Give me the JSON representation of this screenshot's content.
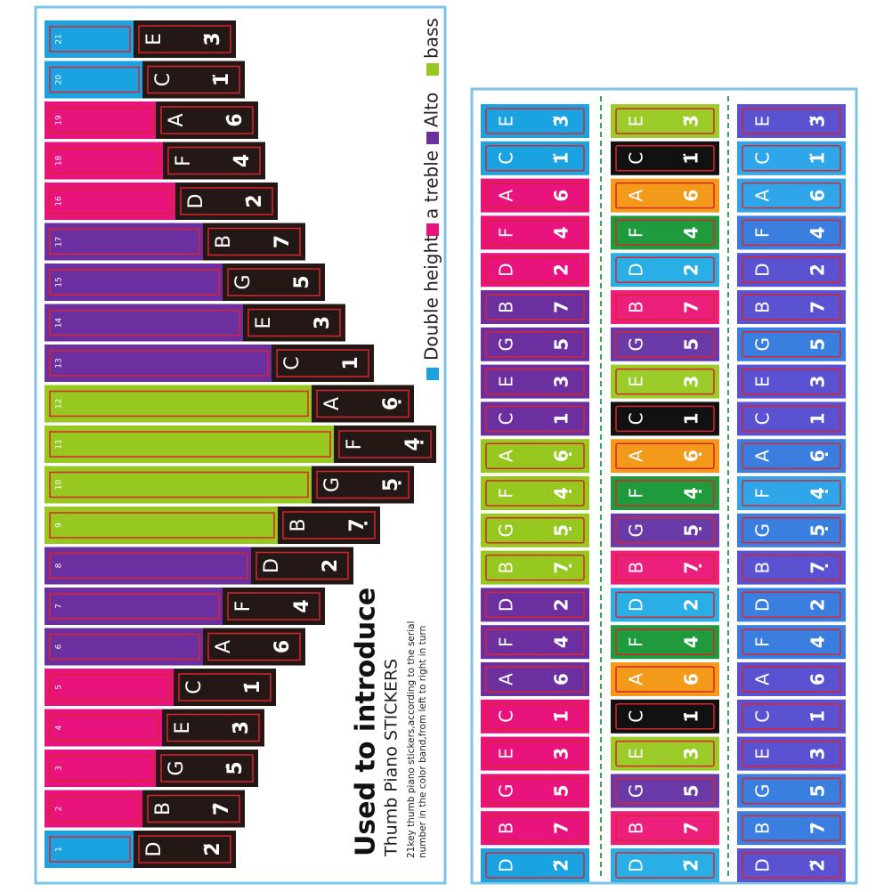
{
  "left": {
    "keys": [
      {
        "index": "21",
        "note": "E",
        "number": "3̈",
        "color": "#1aa3e0"
      },
      {
        "index": "20",
        "note": "C",
        "number": "1̈",
        "color": "#1aa3e0"
      },
      {
        "index": "19",
        "note": "A",
        "number": "6̇",
        "color": "#e8137c"
      },
      {
        "index": "18",
        "note": "F",
        "number": "4̇",
        "color": "#e8137c"
      },
      {
        "index": "16",
        "note": "D",
        "number": "2̇",
        "color": "#e8137c"
      },
      {
        "index": "17",
        "note": "B",
        "number": "7",
        "color": "#6b2fa0"
      },
      {
        "index": "15",
        "note": "G",
        "number": "5",
        "color": "#6b2fa0"
      },
      {
        "index": "14",
        "note": "E",
        "number": "3",
        "color": "#6b2fa0"
      },
      {
        "index": "13",
        "note": "C",
        "number": "1",
        "color": "#6b2fa0"
      },
      {
        "index": "12",
        "note": "A",
        "number": "6̣",
        "color": "#97c820"
      },
      {
        "index": "11",
        "note": "F",
        "number": "4̣",
        "color": "#97c820"
      },
      {
        "index": "10",
        "note": "G",
        "number": "5̣",
        "color": "#97c820"
      },
      {
        "index": "9",
        "note": "B",
        "number": "7̣",
        "color": "#97c820"
      },
      {
        "index": "8",
        "note": "D",
        "number": "2",
        "color": "#6b2fa0"
      },
      {
        "index": "7",
        "note": "F",
        "number": "4",
        "color": "#6b2fa0"
      },
      {
        "index": "6",
        "note": "A",
        "number": "6",
        "color": "#6b2fa0"
      },
      {
        "index": "5",
        "note": "C",
        "number": "1̇",
        "color": "#e8137c"
      },
      {
        "index": "4",
        "note": "E",
        "number": "3̇",
        "color": "#e8137c"
      },
      {
        "index": "3",
        "note": "G",
        "number": "5̇",
        "color": "#e8137c"
      },
      {
        "index": "2",
        "note": "B",
        "number": "7̇",
        "color": "#e8137c"
      },
      {
        "index": "1",
        "note": "D",
        "number": "2̈",
        "color": "#1aa3e0"
      }
    ],
    "legend": [
      {
        "label": "Double height",
        "color": "#1aa3e0"
      },
      {
        "label": "a treble",
        "color": "#e8137c"
      },
      {
        "label": "Alto",
        "color": "#6b2fa0"
      },
      {
        "label": "bass",
        "color": "#97c820"
      }
    ],
    "intro": {
      "title": "Used to introduce",
      "subtitle": "Thumb Piano STICKERS",
      "lines": [
        "21key thumb piano stickers,according to the serial",
        "number in the color band,from left to right in turn"
      ]
    }
  },
  "strips": [
    {
      "stickers": [
        {
          "note": "E",
          "number": "3̈",
          "color": "#1aa3e0"
        },
        {
          "note": "C",
          "number": "1̈",
          "color": "#1aa3e0"
        },
        {
          "note": "A",
          "number": "6̇",
          "color": "#e8137c"
        },
        {
          "note": "F",
          "number": "4̇",
          "color": "#e8137c"
        },
        {
          "note": "D",
          "number": "2̇",
          "color": "#e8137c"
        },
        {
          "note": "B",
          "number": "7",
          "color": "#6b2fa0"
        },
        {
          "note": "G",
          "number": "5",
          "color": "#6b2fa0"
        },
        {
          "note": "E",
          "number": "3",
          "color": "#6b2fa0"
        },
        {
          "note": "C",
          "number": "1",
          "color": "#6b2fa0"
        },
        {
          "note": "A",
          "number": "6̣",
          "color": "#97c820"
        },
        {
          "note": "F",
          "number": "4̣",
          "color": "#97c820"
        },
        {
          "note": "G",
          "number": "5̣",
          "color": "#97c820"
        },
        {
          "note": "B",
          "number": "7̣",
          "color": "#97c820"
        },
        {
          "note": "D",
          "number": "2",
          "color": "#6b2fa0"
        },
        {
          "note": "F",
          "number": "4",
          "color": "#6b2fa0"
        },
        {
          "note": "A",
          "number": "6",
          "color": "#6b2fa0"
        },
        {
          "note": "C",
          "number": "1̇",
          "color": "#e8137c"
        },
        {
          "note": "E",
          "number": "3̇",
          "color": "#e8137c"
        },
        {
          "note": "G",
          "number": "5̇",
          "color": "#e8137c"
        },
        {
          "note": "B",
          "number": "7̇",
          "color": "#e8137c"
        },
        {
          "note": "D",
          "number": "2̈",
          "color": "#1aa3e0"
        }
      ]
    },
    {
      "stickers": [
        {
          "note": "E",
          "number": "3̈",
          "color": "#9ccc2a"
        },
        {
          "note": "C",
          "number": "1̈",
          "color": "#111111"
        },
        {
          "note": "A",
          "number": "6̇",
          "color": "#f39a1a"
        },
        {
          "note": "F",
          "number": "4̇",
          "color": "#1f9a3c"
        },
        {
          "note": "D",
          "number": "2̇",
          "color": "#29aee6"
        },
        {
          "note": "B",
          "number": "7",
          "color": "#ec1f7c"
        },
        {
          "note": "G",
          "number": "5",
          "color": "#6a3aa8"
        },
        {
          "note": "E",
          "number": "3",
          "color": "#9ccc2a"
        },
        {
          "note": "C",
          "number": "1",
          "color": "#111111"
        },
        {
          "note": "A",
          "number": "6̣",
          "color": "#f39a1a"
        },
        {
          "note": "F",
          "number": "4̣",
          "color": "#1f9a3c"
        },
        {
          "note": "G",
          "number": "5̣",
          "color": "#6a3aa8"
        },
        {
          "note": "B",
          "number": "7̣",
          "color": "#ec1f7c"
        },
        {
          "note": "D",
          "number": "2",
          "color": "#29aee6"
        },
        {
          "note": "F",
          "number": "4",
          "color": "#1f9a3c"
        },
        {
          "note": "A",
          "number": "6",
          "color": "#f39a1a"
        },
        {
          "note": "C",
          "number": "1̇",
          "color": "#111111"
        },
        {
          "note": "E",
          "number": "3̇",
          "color": "#9ccc2a"
        },
        {
          "note": "G",
          "number": "5̇",
          "color": "#6a3aa8"
        },
        {
          "note": "B",
          "number": "7̇",
          "color": "#ec1f7c"
        },
        {
          "note": "D",
          "number": "2̈",
          "color": "#29aee6"
        }
      ]
    },
    {
      "stickers": [
        {
          "note": "E",
          "number": "3̈",
          "color": "#5a52d0"
        },
        {
          "note": "C",
          "number": "1̈",
          "color": "#2fa6ea"
        },
        {
          "note": "A",
          "number": "6̇",
          "color": "#2fa6ea"
        },
        {
          "note": "F",
          "number": "4̇",
          "color": "#3a7ee0"
        },
        {
          "note": "D",
          "number": "2̇",
          "color": "#5a52d0"
        },
        {
          "note": "B",
          "number": "7",
          "color": "#5a52d0"
        },
        {
          "note": "G",
          "number": "5",
          "color": "#3a7ee0"
        },
        {
          "note": "E",
          "number": "3",
          "color": "#5a52d0"
        },
        {
          "note": "C",
          "number": "1",
          "color": "#5a52d0"
        },
        {
          "note": "A",
          "number": "6̣",
          "color": "#3a7ee0"
        },
        {
          "note": "F",
          "number": "4̣",
          "color": "#2fa6ea"
        },
        {
          "note": "G",
          "number": "5̣",
          "color": "#3a7ee0"
        },
        {
          "note": "B",
          "number": "7̣",
          "color": "#5a52d0"
        },
        {
          "note": "D",
          "number": "2",
          "color": "#3a7ee0"
        },
        {
          "note": "F",
          "number": "4",
          "color": "#3a7ee0"
        },
        {
          "note": "A",
          "number": "6",
          "color": "#5a52d0"
        },
        {
          "note": "C",
          "number": "1̇",
          "color": "#5a52d0"
        },
        {
          "note": "E",
          "number": "3̇",
          "color": "#5a52d0"
        },
        {
          "note": "G",
          "number": "5̇",
          "color": "#3a7ee0"
        },
        {
          "note": "B",
          "number": "7̇",
          "color": "#3a7ee0"
        },
        {
          "note": "D",
          "number": "2̈",
          "color": "#5a52d0"
        }
      ]
    }
  ]
}
